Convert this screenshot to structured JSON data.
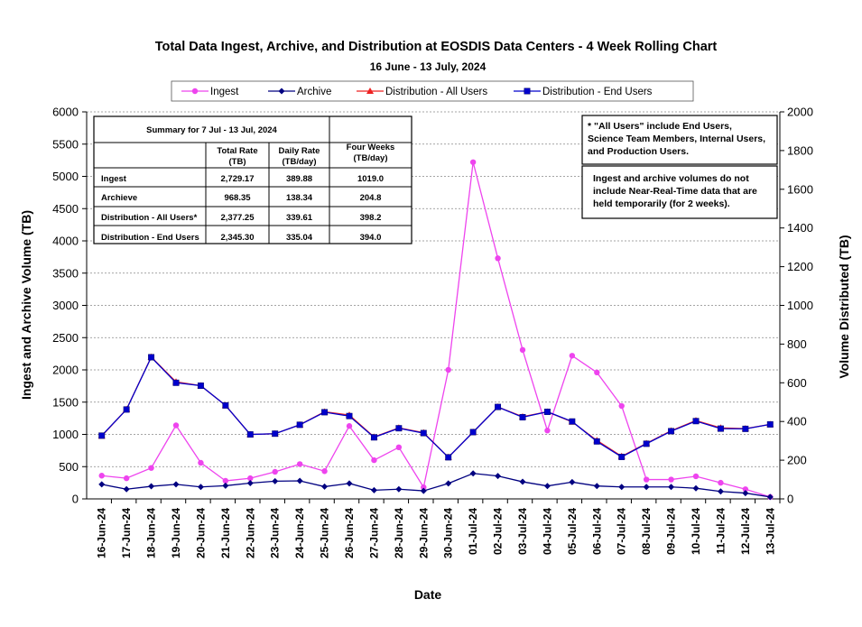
{
  "chart_data": {
    "type": "line",
    "title": "Total Data Ingest, Archive, and  Distribution at EOSDIS Data Centers - 4 Week Rolling Chart",
    "subtitle": "16  June   - 13  July,  2024",
    "xlabel": "Date",
    "ylabel_left": "Ingest and Archive Volume (TB)",
    "ylabel_right": "Volume Distributed (TB)",
    "ylim_left": [
      0,
      6000
    ],
    "yticks_left": [
      "0",
      "500",
      "1000",
      "1500",
      "2000",
      "2500",
      "3000",
      "3500",
      "4000",
      "4500",
      "5000",
      "5500",
      "6000"
    ],
    "ylim_right": [
      0,
      2000
    ],
    "yticks_right": [
      "0",
      "200",
      "400",
      "600",
      "800",
      "1000",
      "1200",
      "1400",
      "1600",
      "1800",
      "2000"
    ],
    "grid": "horizontal",
    "legend_position": "top",
    "categories": [
      "16-Jun-24",
      "17-Jun-24",
      "18-Jun-24",
      "19-Jun-24",
      "20-Jun-24",
      "21-Jun-24",
      "22-Jun-24",
      "23-Jun-24",
      "24-Jun-24",
      "25-Jun-24",
      "26-Jun-24",
      "27-Jun-24",
      "28-Jun-24",
      "29-Jun-24",
      "30-Jun-24",
      "01-Jul-24",
      "02-Jul-24",
      "03-Jul-24",
      "04-Jul-24",
      "05-Jul-24",
      "06-Jul-24",
      "07-Jul-24",
      "08-Jul-24",
      "09-Jul-24",
      "10-Jul-24",
      "11-Jul-24",
      "12-Jul-24",
      "13-Jul-24"
    ],
    "series": [
      {
        "name": "Ingest",
        "axis": "left",
        "color": "#ee44ee",
        "marker": "circle",
        "values": [
          360,
          320,
          480,
          1140,
          560,
          280,
          320,
          420,
          540,
          430,
          1130,
          600,
          800,
          180,
          2000,
          5220,
          3730,
          2310,
          1060,
          2220,
          1960,
          1440,
          300,
          300,
          350,
          250,
          150,
          30
        ]
      },
      {
        "name": "Archive",
        "axis": "left",
        "color": "#000080",
        "marker": "diamond",
        "values": [
          225,
          150,
          195,
          225,
          185,
          205,
          245,
          275,
          280,
          190,
          240,
          135,
          150,
          125,
          240,
          395,
          355,
          265,
          200,
          260,
          200,
          185,
          185,
          185,
          165,
          115,
          90,
          30
        ]
      },
      {
        "name": "Distribution - All Users",
        "axis": "right",
        "color": "#ee2222",
        "marker": "triangle",
        "values": [
          325,
          463,
          733,
          605,
          585,
          483,
          333,
          337,
          383,
          450,
          433,
          320,
          367,
          342,
          215,
          345,
          475,
          425,
          450,
          398,
          302,
          220,
          287,
          352,
          405,
          367,
          363,
          385
        ]
      },
      {
        "name": "Distribution - End Users",
        "axis": "right",
        "color": "#0000cc",
        "marker": "square",
        "values": [
          327,
          462,
          732,
          600,
          585,
          483,
          333,
          337,
          383,
          448,
          428,
          318,
          365,
          340,
          215,
          345,
          475,
          422,
          450,
          400,
          297,
          217,
          285,
          350,
          402,
          363,
          362,
          385
        ]
      }
    ],
    "summary_table": {
      "title": "Summary  for  7  Jul   - 13  Jul,  2024",
      "headers": [
        "",
        "Total Rate\n(TB)",
        "Daily Rate\n(TB/day)",
        "Four Weeks\n(TB/day)"
      ],
      "rows": [
        [
          "Ingest",
          "2,729.17",
          "389.88",
          "1019.0"
        ],
        [
          "Archieve",
          "968.35",
          "138.34",
          "204.8"
        ],
        [
          "Distribution - All Users*",
          "2,377.25",
          "339.61",
          "398.2"
        ],
        [
          "Distribution - End Users",
          "2,345.30",
          "335.04",
          "394.0"
        ]
      ]
    },
    "notes": [
      [
        "  * \"All Users\" include End Users,",
        "Science Team Members,  Internal Users,",
        "and Production Users."
      ],
      [
        "Ingest and archive volumes do not",
        "include Near-Real-Time data that are",
        "held temporarily (for 2 weeks)."
      ]
    ]
  }
}
